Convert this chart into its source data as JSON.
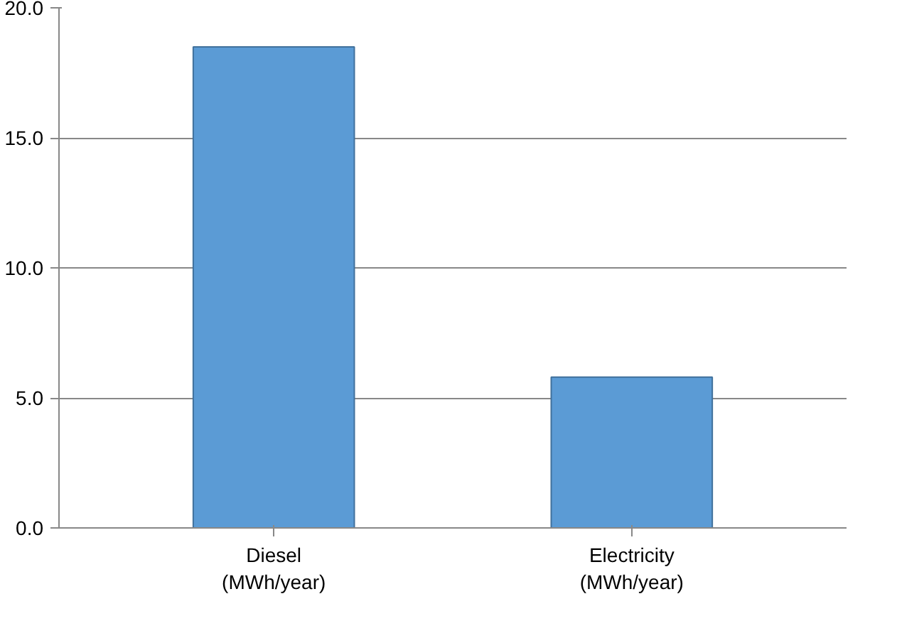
{
  "chart_data": {
    "type": "bar",
    "categories": [
      "Diesel\n(MWh/year)",
      "Electricity\n(MWh/year)"
    ],
    "values": [
      18.5,
      5.8
    ],
    "color": "#5b9bd5",
    "ylim": [
      0,
      20
    ],
    "yticks": [
      {
        "value": 0,
        "label": "0.0"
      },
      {
        "value": 5,
        "label": "5.0"
      },
      {
        "value": 10,
        "label": "10.0"
      },
      {
        "value": 15,
        "label": "15.0"
      },
      {
        "value": 20,
        "label": "20.0"
      }
    ],
    "grid": "y"
  }
}
